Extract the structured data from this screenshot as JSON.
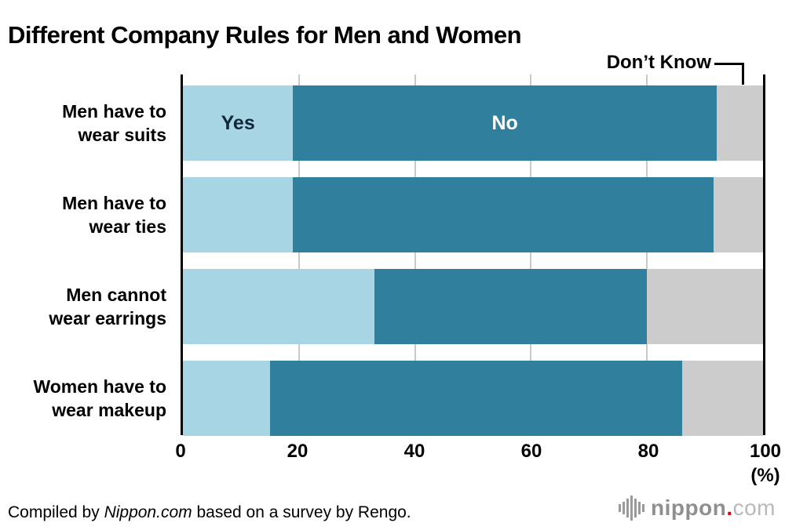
{
  "title": "Different Company Rules for Men and Women",
  "annotation": {
    "dont_know": "Don’t Know"
  },
  "chart_data": {
    "type": "bar",
    "orientation": "horizontal",
    "stacked": true,
    "title": "Different Company Rules for Men and Women",
    "categories": [
      "Men have to wear suits",
      "Men have to wear ties",
      "Men cannot wear earrings",
      "Women have to wear makeup"
    ],
    "category_lines": [
      [
        "Men have to",
        "wear suits"
      ],
      [
        "Men have to",
        "wear ties"
      ],
      [
        "Men cannot",
        "wear earrings"
      ],
      [
        "Women have to",
        "wear makeup"
      ]
    ],
    "series": [
      {
        "name": "Yes",
        "color": "#a7d5e4",
        "values": [
          19,
          19,
          33,
          15
        ]
      },
      {
        "name": "No",
        "color": "#2f7f9d",
        "values": [
          73,
          72.5,
          47,
          71
        ]
      },
      {
        "name": "Don't Know",
        "color": "#cccccc",
        "values": [
          8,
          8.5,
          20,
          14
        ]
      }
    ],
    "segment_labels": {
      "yes": "Yes",
      "no": "No"
    },
    "x_ticks": [
      0,
      20,
      40,
      60,
      80,
      100
    ],
    "x_unit": "(%)",
    "xlim": [
      0,
      100
    ],
    "grid": true,
    "gridline_color": "#c9c9c9"
  },
  "footer": {
    "credit_prefix": "Compiled by ",
    "credit_source": "Nippon.com",
    "credit_suffix": " based on a survey by Rengo."
  },
  "logo": {
    "name": "nippon",
    "dot": ".",
    "tld": "com"
  }
}
